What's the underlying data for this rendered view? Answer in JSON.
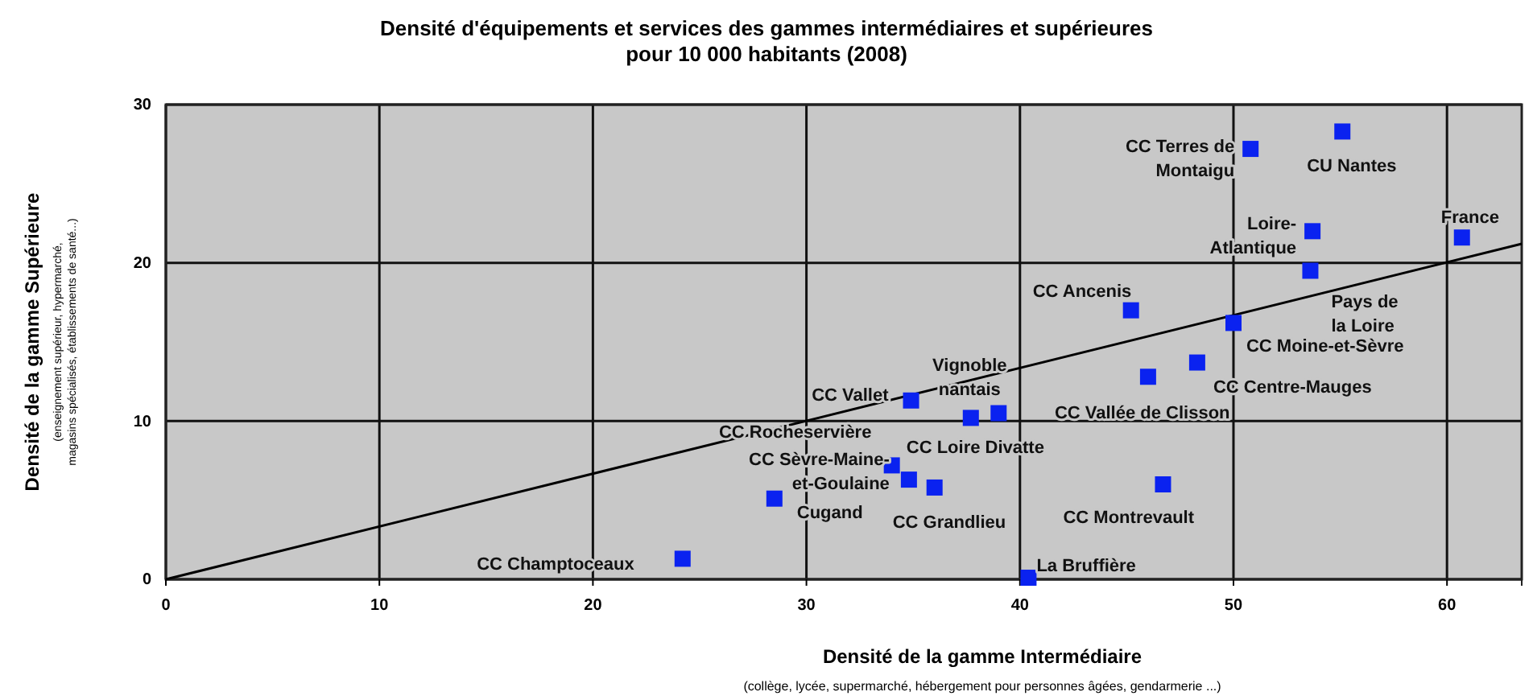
{
  "chart_data": {
    "type": "scatter",
    "title": "Densité d'équipements et services des gammes intermédiaires et supérieures\npour 10 000 habitants (2008)",
    "xlabel": "Densité de la gamme Intermédiaire",
    "ylabel": "Densité de la gamme Supérieure",
    "xlim": [
      0,
      63.5
    ],
    "ylim": [
      0,
      30
    ],
    "xticks": [
      0,
      10,
      20,
      30,
      40,
      50,
      60
    ],
    "yticks": [
      0,
      10,
      20,
      30
    ],
    "grid": true,
    "marker": "square",
    "series": [
      {
        "color": "#0a22f0",
        "x": [
          24.2,
          28.5,
          34.8,
          34.0,
          36.0,
          34.9,
          39.0,
          37.7,
          50.8,
          55.1,
          53.7,
          53.6,
          60.7,
          45.2,
          50.0,
          48.3,
          46.0,
          46.7,
          40.4
        ],
        "values": [
          1.3,
          5.1,
          6.3,
          7.2,
          5.8,
          11.3,
          10.5,
          10.2,
          27.2,
          28.3,
          22.0,
          19.5,
          21.6,
          17.0,
          16.2,
          13.7,
          12.8,
          6.0,
          0.1
        ]
      },
      {
        "type": "line",
        "marker": "none",
        "color": "#000000",
        "x": [
          0,
          63.5
        ],
        "values": [
          0,
          21.2
        ]
      }
    ],
    "annotations": [
      {
        "text": "CC Champtoceaux",
        "x": 24.2,
        "y": 1.3
      },
      {
        "text": "Cugand",
        "x": 28.5,
        "y": 5.1
      },
      {
        "text": "CC Sèvre-Maine-\net-Goulaine",
        "x": 34.8,
        "y": 6.3
      },
      {
        "text": "CC Rocheservière",
        "x": 34.0,
        "y": 7.2
      },
      {
        "text": "CC Grandlieu",
        "x": 36.0,
        "y": 5.8
      },
      {
        "text": "CC Vallet",
        "x": 34.9,
        "y": 11.3
      },
      {
        "text": "Vignoble\nnantais",
        "x": 39.0,
        "y": 10.5
      },
      {
        "text": "CC Loire Divatte",
        "x": 37.7,
        "y": 10.2
      },
      {
        "text": "CC Terres de\nMontaigu",
        "x": 50.8,
        "y": 27.2
      },
      {
        "text": "CU Nantes",
        "x": 55.1,
        "y": 28.3
      },
      {
        "text": "Loire-\nAtlantique",
        "x": 53.7,
        "y": 22.0
      },
      {
        "text": "Pays de\nla Loire",
        "x": 53.6,
        "y": 19.5
      },
      {
        "text": "France",
        "x": 60.7,
        "y": 21.6
      },
      {
        "text": "CC Ancenis",
        "x": 45.2,
        "y": 17.0
      },
      {
        "text": "CC Moine-et-Sèvre",
        "x": 50.0,
        "y": 16.2
      },
      {
        "text": "CC Centre-Mauges",
        "x": 48.3,
        "y": 13.7
      },
      {
        "text": "CC Vallée de Clisson",
        "x": 46.0,
        "y": 12.8
      },
      {
        "text": "CC Montrevault",
        "x": 46.7,
        "y": 6.0
      },
      {
        "text": "La Bruffière",
        "x": 40.4,
        "y": 0.1
      },
      "(collège, lycée, supermarché, hébergement pour personnes âgées, gendarmerie ...)",
      "(enseignement supérieur, hypermarché,\nmagasins spécialisés, établissements de santé...)"
    ]
  }
}
